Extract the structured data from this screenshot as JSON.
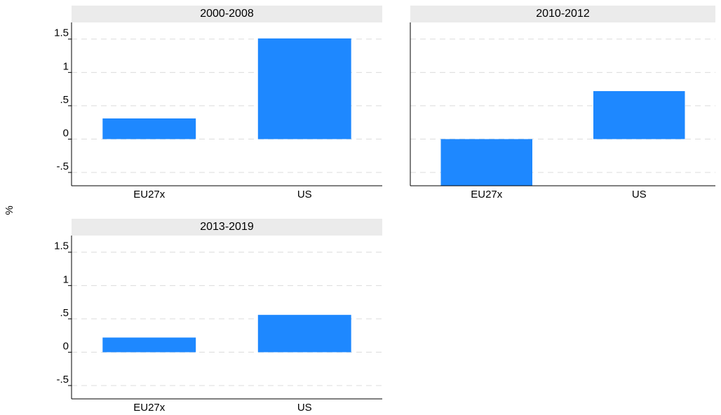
{
  "ylabel": "%",
  "chart_data": [
    {
      "type": "bar",
      "title": "2000-2008",
      "categories": [
        "EU27x",
        "US"
      ],
      "values": [
        0.31,
        1.51
      ],
      "color": "#1e88ff",
      "ylim": [
        -0.7,
        1.75
      ],
      "yticks": [
        {
          "value": -0.5,
          "label": "-.5"
        },
        0,
        {
          "value": 0.5,
          "label": ".5"
        },
        1,
        1.5
      ],
      "grid": true
    },
    {
      "type": "bar",
      "title": "2010-2012",
      "categories": [
        "EU27x",
        "US"
      ],
      "values": [
        -0.7,
        0.72
      ],
      "color": "#1e88ff",
      "ylim": [
        -0.7,
        1.75
      ],
      "yticks": [
        -0.5,
        0,
        0.5,
        1,
        1.5
      ],
      "grid": true
    },
    {
      "type": "bar",
      "title": "2013-2019",
      "categories": [
        "EU27x",
        "US"
      ],
      "values": [
        0.22,
        0.56
      ],
      "color": "#1e88ff",
      "ylim": [
        -0.7,
        1.75
      ],
      "yticks": [
        {
          "value": -0.5,
          "label": "-.5"
        },
        0,
        {
          "value": 0.5,
          "label": ".5"
        },
        1,
        1.5
      ],
      "grid": true
    }
  ]
}
